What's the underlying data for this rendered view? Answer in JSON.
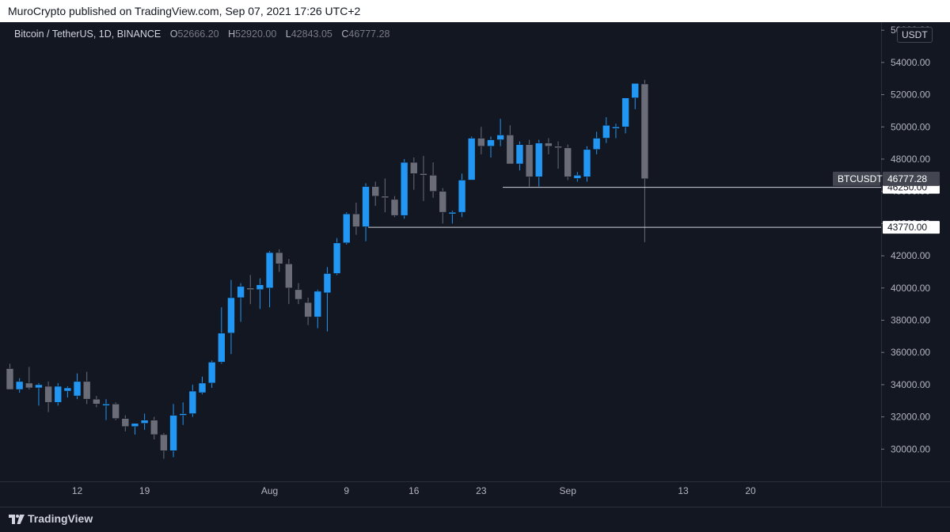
{
  "header": {
    "published_text": "MuroCrypto published on TradingView.com, Sep 07, 2021 17:26 UTC+2"
  },
  "legend": {
    "symbol": "Bitcoin / TetherUS, 1D, BINANCE",
    "o_label": "O",
    "o_value": "52666.20",
    "h_label": "H",
    "h_value": "52920.00",
    "l_label": "L",
    "l_value": "42843.05",
    "c_label": "C",
    "c_value": "46777.28"
  },
  "unit_label": "USDT",
  "footer": {
    "brand": "TradingView"
  },
  "colors": {
    "up": "#2196f3",
    "down": "#6a6d78",
    "background": "#131722",
    "text": "#b2b5be"
  },
  "chart_data": {
    "type": "candlestick",
    "y_ticks": [
      30000,
      32000,
      34000,
      36000,
      38000,
      40000,
      42000,
      44000,
      46000,
      48000,
      50000,
      52000,
      54000,
      56000
    ],
    "y_tick_labels": [
      "30000.00",
      "32000.00",
      "34000.00",
      "36000.00",
      "38000.00",
      "40000.00",
      "42000.00",
      "44000.00",
      "46000.00",
      "48000.00",
      "50000.00",
      "52000.00",
      "54000.00",
      "56000.00"
    ],
    "ylim": [
      28000,
      56500
    ],
    "x_ticks": [
      {
        "label": "12",
        "index": 7
      },
      {
        "label": "19",
        "index": 14
      },
      {
        "label": "Aug",
        "index": 27
      },
      {
        "label": "9",
        "index": 35
      },
      {
        "label": "16",
        "index": 42
      },
      {
        "label": "23",
        "index": 49
      },
      {
        "label": "Sep",
        "index": 58
      },
      {
        "label": "13",
        "index": 70
      },
      {
        "label": "20",
        "index": 77
      }
    ],
    "candles": [
      {
        "o": 35000,
        "h": 35300,
        "l": 33700,
        "c": 33700
      },
      {
        "o": 33700,
        "h": 34400,
        "l": 33500,
        "c": 34200
      },
      {
        "o": 34100,
        "h": 35100,
        "l": 33700,
        "c": 33800
      },
      {
        "o": 33800,
        "h": 34100,
        "l": 32700,
        "c": 34000
      },
      {
        "o": 33900,
        "h": 34200,
        "l": 32300,
        "c": 32900
      },
      {
        "o": 32900,
        "h": 34100,
        "l": 32700,
        "c": 33900
      },
      {
        "o": 33600,
        "h": 33900,
        "l": 33200,
        "c": 33800
      },
      {
        "o": 33300,
        "h": 34700,
        "l": 33100,
        "c": 34200
      },
      {
        "o": 34200,
        "h": 34800,
        "l": 32800,
        "c": 33100
      },
      {
        "o": 33100,
        "h": 33300,
        "l": 32600,
        "c": 32800
      },
      {
        "o": 32700,
        "h": 33100,
        "l": 31800,
        "c": 32800
      },
      {
        "o": 32800,
        "h": 32900,
        "l": 31800,
        "c": 31900
      },
      {
        "o": 31900,
        "h": 32100,
        "l": 31100,
        "c": 31400
      },
      {
        "o": 31400,
        "h": 31600,
        "l": 30900,
        "c": 31600
      },
      {
        "o": 31600,
        "h": 32200,
        "l": 31200,
        "c": 31800
      },
      {
        "o": 31800,
        "h": 32000,
        "l": 30600,
        "c": 30900
      },
      {
        "o": 30900,
        "h": 31000,
        "l": 29400,
        "c": 29900
      },
      {
        "o": 29900,
        "h": 32800,
        "l": 29500,
        "c": 32100
      },
      {
        "o": 32100,
        "h": 32900,
        "l": 31500,
        "c": 32200
      },
      {
        "o": 32200,
        "h": 34000,
        "l": 32000,
        "c": 33600
      },
      {
        "o": 33500,
        "h": 34500,
        "l": 33400,
        "c": 34100
      },
      {
        "o": 34100,
        "h": 35500,
        "l": 33800,
        "c": 35400
      },
      {
        "o": 35400,
        "h": 38800,
        "l": 35300,
        "c": 37200
      },
      {
        "o": 37200,
        "h": 40500,
        "l": 35900,
        "c": 39400
      },
      {
        "o": 39400,
        "h": 40300,
        "l": 37900,
        "c": 40100
      },
      {
        "o": 40000,
        "h": 40800,
        "l": 39000,
        "c": 39900
      },
      {
        "o": 39900,
        "h": 40600,
        "l": 38700,
        "c": 40200
      },
      {
        "o": 40000,
        "h": 42300,
        "l": 38800,
        "c": 42200
      },
      {
        "o": 42200,
        "h": 42400,
        "l": 41000,
        "c": 41500
      },
      {
        "o": 41500,
        "h": 41800,
        "l": 39000,
        "c": 40000
      },
      {
        "o": 39900,
        "h": 40300,
        "l": 39000,
        "c": 39300
      },
      {
        "o": 39100,
        "h": 39400,
        "l": 37700,
        "c": 38200
      },
      {
        "o": 38200,
        "h": 39900,
        "l": 37500,
        "c": 39800
      },
      {
        "o": 39700,
        "h": 41300,
        "l": 37300,
        "c": 40900
      },
      {
        "o": 40900,
        "h": 43100,
        "l": 40800,
        "c": 42800
      },
      {
        "o": 42800,
        "h": 44700,
        "l": 42700,
        "c": 44600
      },
      {
        "o": 44600,
        "h": 45300,
        "l": 43300,
        "c": 43800
      },
      {
        "o": 43800,
        "h": 46500,
        "l": 42900,
        "c": 46300
      },
      {
        "o": 46300,
        "h": 46600,
        "l": 45100,
        "c": 45700
      },
      {
        "o": 45700,
        "h": 46800,
        "l": 44700,
        "c": 45600
      },
      {
        "o": 45500,
        "h": 45700,
        "l": 44400,
        "c": 44500
      },
      {
        "o": 44500,
        "h": 48000,
        "l": 44300,
        "c": 47800
      },
      {
        "o": 47800,
        "h": 48100,
        "l": 46100,
        "c": 47100
      },
      {
        "o": 47100,
        "h": 48200,
        "l": 45400,
        "c": 47000
      },
      {
        "o": 47000,
        "h": 47800,
        "l": 45600,
        "c": 46000
      },
      {
        "o": 46000,
        "h": 46200,
        "l": 44000,
        "c": 44700
      },
      {
        "o": 44600,
        "h": 44800,
        "l": 44000,
        "c": 44700
      },
      {
        "o": 44700,
        "h": 47100,
        "l": 44400,
        "c": 46700
      },
      {
        "o": 46700,
        "h": 49400,
        "l": 46700,
        "c": 49300
      },
      {
        "o": 49300,
        "h": 50000,
        "l": 48300,
        "c": 48800
      },
      {
        "o": 48800,
        "h": 49400,
        "l": 48100,
        "c": 49200
      },
      {
        "o": 49200,
        "h": 50500,
        "l": 48800,
        "c": 49500
      },
      {
        "o": 49500,
        "h": 50100,
        "l": 47700,
        "c": 47700
      },
      {
        "o": 47700,
        "h": 49100,
        "l": 47300,
        "c": 48900
      },
      {
        "o": 48900,
        "h": 49200,
        "l": 46300,
        "c": 46900
      },
      {
        "o": 46900,
        "h": 49200,
        "l": 46300,
        "c": 49000
      },
      {
        "o": 49000,
        "h": 49300,
        "l": 48300,
        "c": 48800
      },
      {
        "o": 48800,
        "h": 49100,
        "l": 47400,
        "c": 48700
      },
      {
        "o": 48700,
        "h": 48900,
        "l": 46700,
        "c": 46900
      },
      {
        "o": 46800,
        "h": 47200,
        "l": 46600,
        "c": 47000
      },
      {
        "o": 46900,
        "h": 48800,
        "l": 46600,
        "c": 48600
      },
      {
        "o": 48600,
        "h": 49700,
        "l": 48300,
        "c": 49300
      },
      {
        "o": 49300,
        "h": 50600,
        "l": 49000,
        "c": 50100
      },
      {
        "o": 49900,
        "h": 50200,
        "l": 49300,
        "c": 50000
      },
      {
        "o": 50000,
        "h": 51800,
        "l": 49600,
        "c": 51800
      },
      {
        "o": 51800,
        "h": 52500,
        "l": 51100,
        "c": 52700
      },
      {
        "o": 52666.2,
        "h": 52920,
        "l": 42843.05,
        "c": 46777.28
      }
    ],
    "lines": [
      {
        "value": 46250,
        "label": "46250.00",
        "from_index": 51
      },
      {
        "value": 43770,
        "label": "43770.00",
        "from_index": 37
      }
    ],
    "last_price": {
      "name": "BTCUSDT",
      "value": 46777.28,
      "label": "46777.28"
    }
  }
}
